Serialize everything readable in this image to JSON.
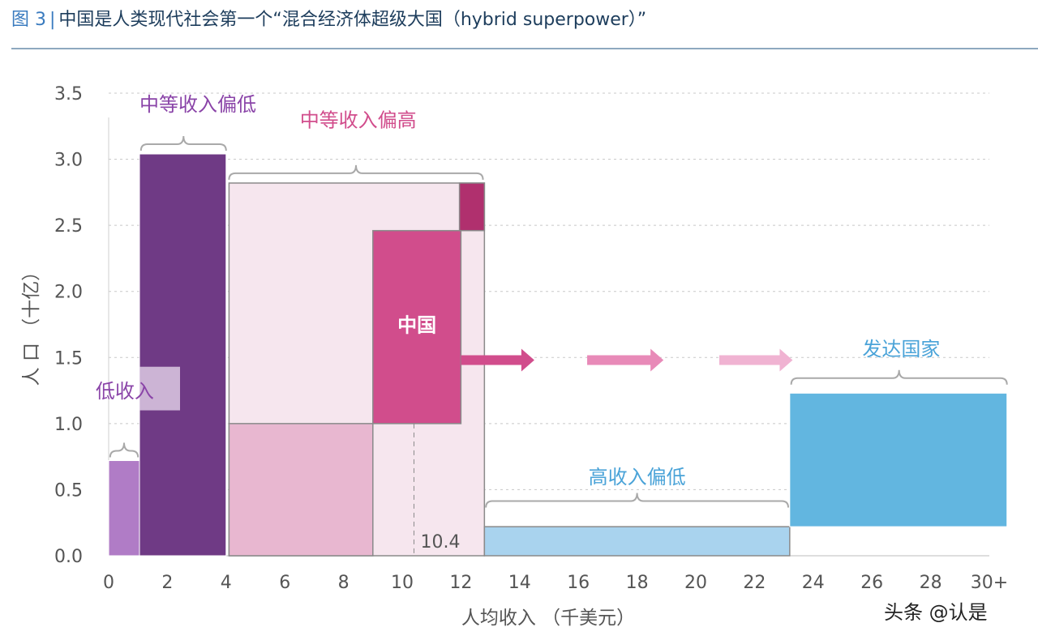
{
  "header": {
    "figure_label": "图 3",
    "separator": "|",
    "title": "中国是人类现代社会第一个“混合经济体超级大国（hybrid superpower）”"
  },
  "watermark": "头条 @认是",
  "chart_data": {
    "type": "bar",
    "xlabel": "人均收入 （千美元）",
    "ylabel": "人 口 （十亿）",
    "xlim": [
      0,
      30
    ],
    "ylim": [
      0,
      3.5
    ],
    "x_ticks": [
      {
        "v": 0,
        "label": "0"
      },
      {
        "v": 2,
        "label": "2"
      },
      {
        "v": 4,
        "label": "4"
      },
      {
        "v": 6,
        "label": "6"
      },
      {
        "v": 8,
        "label": "8"
      },
      {
        "v": 10,
        "label": "10"
      },
      {
        "v": 12,
        "label": "12"
      },
      {
        "v": 14,
        "label": "14"
      },
      {
        "v": 16,
        "label": "16"
      },
      {
        "v": 18,
        "label": "18"
      },
      {
        "v": 20,
        "label": "20"
      },
      {
        "v": 22,
        "label": "22"
      },
      {
        "v": 24,
        "label": "24"
      },
      {
        "v": 26,
        "label": "26"
      },
      {
        "v": 28,
        "label": "28"
      },
      {
        "v": 30,
        "label": "30+"
      }
    ],
    "y_ticks": [
      {
        "v": 0,
        "label": "0.0"
      },
      {
        "v": 0.5,
        "label": "0.5"
      },
      {
        "v": 1.0,
        "label": "1.0"
      },
      {
        "v": 1.5,
        "label": "1.5"
      },
      {
        "v": 2.0,
        "label": "2.0"
      },
      {
        "v": 2.5,
        "label": "2.5"
      },
      {
        "v": 3.0,
        "label": "3.0"
      },
      {
        "v": 3.5,
        "label": "3.5"
      }
    ],
    "grid": true,
    "colors": {
      "low": "#b07cc6",
      "lower_middle": "#6f3a85",
      "upper_middle_bg": "#f6e6ee",
      "upper_middle_low": "#e8b7d0",
      "china": "#d14d8c",
      "upper_middle_top": "#b0306e",
      "upper_middle_outline": "#8a8a8a",
      "high_low": "#a9d3ee",
      "developed": "#62b6e0",
      "grid": "#c8c8c8",
      "axis_text": "#555555",
      "low_label": "#8a44a8",
      "mid_label": "#d14d8c",
      "high_label": "#4aa3d8",
      "arrow_1": "#d14d8c",
      "arrow_2": "#e88ab8",
      "arrow_3": "#f0b3d2"
    },
    "bars": [
      {
        "id": "low-income",
        "x0": 0,
        "x1": 1.05,
        "y0": 0,
        "y1": 0.72,
        "color_key": "low"
      },
      {
        "id": "lower-middle-income",
        "x0": 1.05,
        "x1": 4.0,
        "y0": 0,
        "y1": 3.04,
        "color_key": "lower_middle"
      },
      {
        "id": "upper-middle-income",
        "x0": 4.1,
        "x1": 12.8,
        "y0": 0,
        "y1": 2.82,
        "color_key": "upper_middle_bg"
      },
      {
        "id": "upper-middle-low-block",
        "x0": 4.1,
        "x1": 9.0,
        "y0": 0,
        "y1": 1.0,
        "color_key": "upper_middle_low"
      },
      {
        "id": "china",
        "x0": 9.0,
        "x1": 12.0,
        "y0": 1.0,
        "y1": 2.46,
        "color_key": "china"
      },
      {
        "id": "upper-middle-top-block",
        "x0": 11.95,
        "x1": 12.8,
        "y0": 2.46,
        "y1": 2.82,
        "color_key": "upper_middle_top"
      },
      {
        "id": "high-income-low",
        "x0": 12.8,
        "x1": 23.2,
        "y0": 0,
        "y1": 0.22,
        "color_key": "high_low"
      },
      {
        "id": "developed",
        "x0": 23.2,
        "x1": 30.6,
        "y0": 0.22,
        "y1": 1.23,
        "color_key": "developed"
      }
    ],
    "china_marker": {
      "x": 10.4,
      "label": "10.4"
    },
    "annotations": [
      {
        "text": "中国",
        "x": 10.5,
        "y": 1.75,
        "color": "#ffffff",
        "bold": true
      },
      {
        "text": "低收入",
        "x": 0.55,
        "y": 1.25,
        "color_key": "low_label"
      },
      {
        "text": "中等收入偏低",
        "x": 1.05,
        "y": 3.42,
        "color_key": "low_label",
        "anchor": "start"
      },
      {
        "text": "中等收入偏高",
        "x": 8.5,
        "y": 3.3,
        "color_key": "mid_label"
      },
      {
        "text": "高收入偏低",
        "x": 18.0,
        "y": 0.6,
        "color_key": "high_label"
      },
      {
        "text": "发达国家",
        "x": 27.0,
        "y": 1.57,
        "color_key": "high_label"
      }
    ],
    "braces": [
      {
        "x0": 0.05,
        "x1": 1.0,
        "y": 0.72
      },
      {
        "x0": 1.1,
        "x1": 4.0,
        "y": 3.04
      },
      {
        "x0": 4.1,
        "x1": 12.75,
        "y": 2.82
      },
      {
        "x0": 12.85,
        "x1": 23.15,
        "y": 0.34
      },
      {
        "x0": 23.25,
        "x1": 30.6,
        "y": 1.27
      }
    ],
    "arrows": [
      {
        "x0": 12.0,
        "x1": 14.5,
        "y": 1.48,
        "color_key": "arrow_1"
      },
      {
        "x0": 16.3,
        "x1": 18.9,
        "y": 1.48,
        "color_key": "arrow_2"
      },
      {
        "x0": 20.8,
        "x1": 23.3,
        "y": 1.48,
        "color_key": "arrow_3"
      }
    ]
  }
}
